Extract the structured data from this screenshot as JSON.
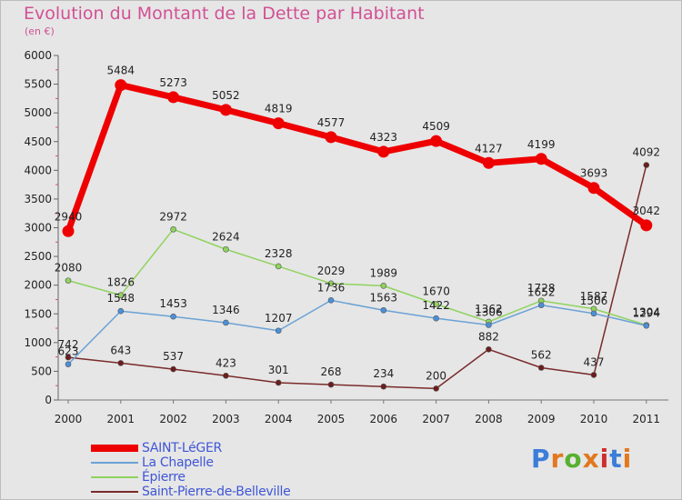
{
  "title": "Evolution du Montant de la Dette par Habitant",
  "subtitle": "(en €)",
  "logo": {
    "text": "Proxiti",
    "colors": [
      "#3b7dd8",
      "#e2781e",
      "#58b030",
      "#e2781e",
      "#cf2e2e",
      "#3b7dd8",
      "#e2781e"
    ]
  },
  "chart_data": {
    "type": "line",
    "categories": [
      "2000",
      "2001",
      "2002",
      "2003",
      "2004",
      "2005",
      "2006",
      "2007",
      "2008",
      "2009",
      "2010",
      "2011"
    ],
    "ylim": [
      0,
      6000
    ],
    "yticks": [
      "0",
      "500",
      "1000",
      "1500",
      "2000",
      "2500",
      "3000",
      "3500",
      "4000",
      "4500",
      "5000",
      "5500",
      "6000"
    ],
    "grid": false,
    "legend_position": "bottom-left",
    "series": [
      {
        "name": "SAINT-LéGER",
        "color": "#ee0000",
        "values": [
          2940,
          5484,
          5273,
          5052,
          4819,
          4577,
          4323,
          4509,
          4127,
          4199,
          3693,
          3042
        ]
      },
      {
        "name": "La Chapelle",
        "color": "#6aa2d6",
        "values": [
          623,
          1548,
          1453,
          1346,
          1207,
          1736,
          1563,
          1422,
          1306,
          1652,
          1506,
          1294
        ]
      },
      {
        "name": "Épierre",
        "color": "#8fd35e",
        "values": [
          2080,
          1826,
          2972,
          2624,
          2328,
          2029,
          1989,
          1670,
          1362,
          1728,
          1587,
          1304
        ]
      },
      {
        "name": "Saint-Pierre-de-Belleville",
        "color": "#7a2a2a",
        "values": [
          742,
          643,
          537,
          423,
          301,
          268,
          234,
          200,
          882,
          562,
          437,
          4092
        ]
      }
    ]
  }
}
